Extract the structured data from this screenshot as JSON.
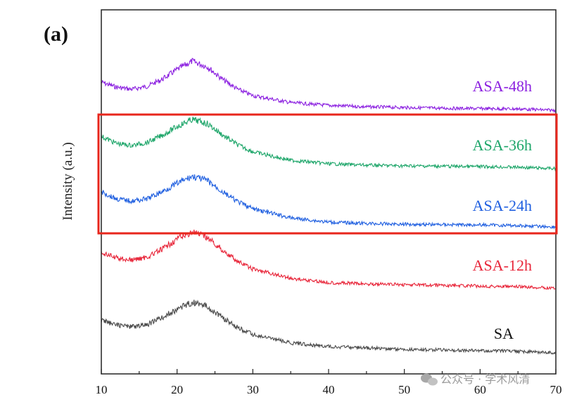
{
  "chart_data": {
    "type": "line",
    "panel_label": "(a)",
    "xlabel": "",
    "ylabel": "Intensity (a.u.)",
    "xlim": [
      10,
      70
    ],
    "x_ticks": [
      10,
      20,
      30,
      40,
      50,
      60,
      70
    ],
    "grid": false,
    "y_ticks_shown": false,
    "series": [
      {
        "name": "ASA-48h",
        "color": "#8b1fe0",
        "offset": 4,
        "x": [
          10,
          12,
          14,
          16,
          18,
          20,
          22,
          24,
          26,
          28,
          30,
          35,
          40,
          45,
          50,
          55,
          60,
          65,
          70
        ],
        "y": [
          0.4,
          0.33,
          0.3,
          0.34,
          0.44,
          0.58,
          0.7,
          0.62,
          0.44,
          0.3,
          0.21,
          0.11,
          0.07,
          0.05,
          0.04,
          0.03,
          0.025,
          0.02,
          0.0
        ]
      },
      {
        "name": "ASA-36h",
        "color": "#1ea66a",
        "offset": 3,
        "x": [
          10,
          12,
          14,
          16,
          18,
          20,
          22,
          24,
          26,
          28,
          30,
          35,
          40,
          45,
          50,
          55,
          60,
          65,
          70
        ],
        "y": [
          0.46,
          0.36,
          0.33,
          0.37,
          0.47,
          0.6,
          0.7,
          0.64,
          0.48,
          0.34,
          0.24,
          0.12,
          0.07,
          0.05,
          0.04,
          0.035,
          0.03,
          0.02,
          0.0
        ]
      },
      {
        "name": "ASA-24h",
        "color": "#1f5fe0",
        "offset": 2,
        "x": [
          10,
          12,
          14,
          16,
          18,
          20,
          22,
          24,
          26,
          28,
          30,
          35,
          40,
          45,
          50,
          55,
          60,
          65,
          70
        ],
        "y": [
          0.5,
          0.4,
          0.37,
          0.4,
          0.5,
          0.62,
          0.72,
          0.66,
          0.5,
          0.36,
          0.26,
          0.13,
          0.07,
          0.05,
          0.04,
          0.035,
          0.03,
          0.02,
          0.0
        ]
      },
      {
        "name": "ASA-12h",
        "color": "#e8263a",
        "offset": 1,
        "x": [
          10,
          12,
          14,
          16,
          18,
          20,
          22,
          24,
          26,
          28,
          30,
          35,
          40,
          45,
          50,
          55,
          60,
          65,
          70
        ],
        "y": [
          0.5,
          0.43,
          0.4,
          0.44,
          0.55,
          0.7,
          0.8,
          0.72,
          0.54,
          0.38,
          0.27,
          0.14,
          0.08,
          0.06,
          0.05,
          0.04,
          0.03,
          0.02,
          0.0
        ]
      },
      {
        "name": "SA",
        "color": "#4a4a4a",
        "offset": 0,
        "x": [
          10,
          12,
          14,
          16,
          18,
          20,
          22,
          24,
          26,
          28,
          30,
          35,
          40,
          45,
          50,
          55,
          60,
          65,
          70
        ],
        "y": [
          0.46,
          0.4,
          0.37,
          0.4,
          0.5,
          0.62,
          0.72,
          0.66,
          0.5,
          0.36,
          0.26,
          0.14,
          0.09,
          0.07,
          0.05,
          0.04,
          0.03,
          0.02,
          0.0
        ]
      }
    ],
    "highlight_box": {
      "color": "#e8261c",
      "covers": [
        "ASA-36h",
        "ASA-24h"
      ]
    }
  },
  "watermark": {
    "text": "公众号 · 学术风清",
    "icon": "wechat-icon"
  }
}
